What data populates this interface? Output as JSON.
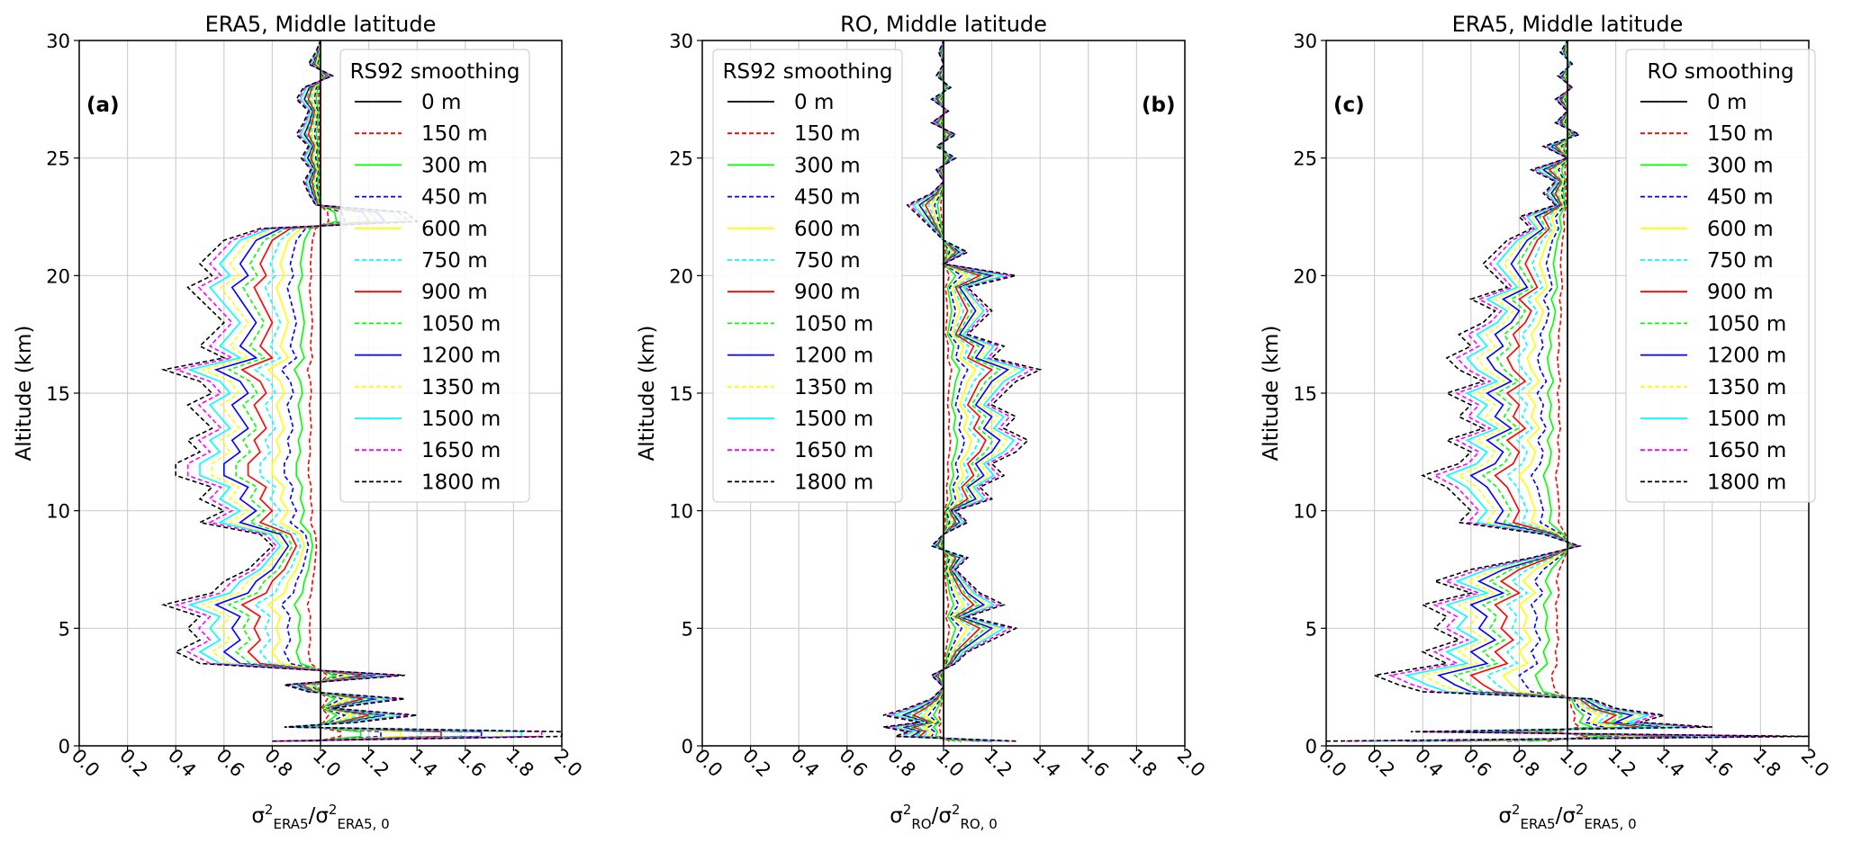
{
  "legend_levels": [
    "0 m",
    "150 m",
    "300 m",
    "450 m",
    "600 m",
    "750 m",
    "900 m",
    "1050 m",
    "1200 m",
    "1350 m",
    "1500 m",
    "1650 m",
    "1800 m"
  ],
  "legend_styles": [
    {
      "color": "#000000",
      "dash": "solid"
    },
    {
      "color": "#ff0000",
      "dash": "dashed"
    },
    {
      "color": "#00ff00",
      "dash": "solid"
    },
    {
      "color": "#0000ff",
      "dash": "dashed"
    },
    {
      "color": "#ffff00",
      "dash": "solid"
    },
    {
      "color": "#00ffff",
      "dash": "dashed"
    },
    {
      "color": "#ff0000",
      "dash": "solid"
    },
    {
      "color": "#00ff00",
      "dash": "dashed"
    },
    {
      "color": "#0000ff",
      "dash": "solid"
    },
    {
      "color": "#ffff00",
      "dash": "dashed"
    },
    {
      "color": "#00ffff",
      "dash": "solid"
    },
    {
      "color": "#ff00ff",
      "dash": "dashed"
    },
    {
      "color": "#000000",
      "dash": "dashed"
    }
  ],
  "x_ticks": [
    "0.0",
    "0.2",
    "0.4",
    "0.6",
    "0.8",
    "1.0",
    "1.2",
    "1.4",
    "1.6",
    "1.8",
    "2.0"
  ],
  "y_ticks": [
    "0",
    "5",
    "10",
    "15",
    "20",
    "25",
    "30"
  ],
  "chart_data": [
    {
      "type": "line",
      "title": "ERA5, Middle latitude",
      "panel_label": "(a)",
      "ylabel": "Altitude (km)",
      "xlabel_main": "σ",
      "xlabel_parts": [
        "σ",
        "2",
        "ERA5",
        "/σ",
        "2",
        "ERA5, 0"
      ],
      "xlim": [
        0,
        2
      ],
      "ylim": [
        0,
        30
      ],
      "legend_title": "RS92 smoothing",
      "legend_position": "top-right",
      "grid": true,
      "reference_x": 1.0,
      "profile_1800m": {
        "altitude_km": [
          0.2,
          0.4,
          0.6,
          0.8,
          1.0,
          1.3,
          1.6,
          2.0,
          2.3,
          2.6,
          3.0,
          3.5,
          4.0,
          4.5,
          5.0,
          5.5,
          6.0,
          6.5,
          7.0,
          7.5,
          8.0,
          8.5,
          9.0,
          9.5,
          10.0,
          10.5,
          11.0,
          11.5,
          12.0,
          12.5,
          13.0,
          13.5,
          14.0,
          14.5,
          15.0,
          15.5,
          16.0,
          16.5,
          17.0,
          17.5,
          18.0,
          18.5,
          19.0,
          19.5,
          20.0,
          20.5,
          21.0,
          21.5,
          22.0,
          22.3,
          22.7,
          23.0,
          23.5,
          24.0,
          24.5,
          25.0,
          25.5,
          26.0,
          26.5,
          27.0,
          27.5,
          28.0,
          28.5,
          29.0,
          29.5,
          30.0
        ],
        "ratio": [
          0.8,
          2.0,
          2.0,
          0.85,
          1.15,
          1.4,
          1.05,
          1.35,
          0.95,
          0.85,
          1.35,
          0.5,
          0.4,
          0.5,
          0.45,
          0.5,
          0.35,
          0.55,
          0.6,
          0.7,
          0.75,
          0.8,
          0.75,
          0.5,
          0.6,
          0.5,
          0.55,
          0.4,
          0.4,
          0.5,
          0.45,
          0.55,
          0.5,
          0.45,
          0.55,
          0.5,
          0.35,
          0.6,
          0.5,
          0.55,
          0.6,
          0.55,
          0.5,
          0.45,
          0.55,
          0.5,
          0.55,
          0.6,
          0.75,
          1.4,
          1.35,
          0.98,
          0.95,
          0.93,
          0.96,
          0.92,
          0.95,
          0.9,
          0.93,
          0.95,
          0.9,
          0.93,
          1.05,
          0.95,
          0.98,
          1.0
        ]
      }
    },
    {
      "type": "line",
      "title": "RO, Middle latitude",
      "panel_label": "(b)",
      "ylabel": "Altitude (km)",
      "xlabel_parts": [
        "σ",
        "2",
        "RO",
        "/σ",
        "2",
        "RO, 0"
      ],
      "xlim": [
        0,
        2
      ],
      "ylim": [
        0,
        30
      ],
      "legend_title": "RS92 smoothing",
      "legend_position": "top-left",
      "grid": true,
      "reference_x": 1.0,
      "profile_1800m": {
        "altitude_km": [
          0.2,
          0.4,
          0.6,
          0.8,
          1.0,
          1.3,
          1.6,
          2.0,
          2.5,
          3.0,
          3.5,
          4.0,
          4.5,
          5.0,
          5.5,
          6.0,
          6.5,
          7.0,
          7.5,
          8.0,
          8.5,
          9.0,
          9.5,
          10.0,
          10.5,
          11.0,
          11.5,
          12.0,
          12.5,
          13.0,
          13.5,
          14.0,
          14.5,
          15.0,
          15.5,
          16.0,
          16.5,
          17.0,
          17.5,
          18.0,
          18.5,
          19.0,
          19.5,
          20.0,
          20.5,
          21.0,
          21.5,
          22.0,
          22.5,
          23.0,
          23.5,
          24.0,
          24.5,
          25.0,
          25.5,
          26.0,
          26.5,
          27.0,
          27.5,
          28.0,
          28.5,
          29.0,
          29.5,
          30.0
        ],
        "ratio": [
          1.3,
          0.8,
          0.85,
          0.75,
          0.9,
          0.75,
          0.85,
          0.95,
          1.0,
          0.95,
          1.05,
          1.1,
          1.2,
          1.3,
          1.1,
          1.25,
          1.15,
          1.1,
          1.05,
          1.1,
          0.95,
          1.0,
          1.1,
          1.05,
          1.2,
          1.15,
          1.25,
          1.2,
          1.3,
          1.35,
          1.25,
          1.3,
          1.2,
          1.25,
          1.3,
          1.4,
          1.2,
          1.25,
          1.1,
          1.15,
          1.2,
          1.15,
          1.1,
          1.3,
          1.0,
          1.1,
          1.0,
          0.95,
          0.9,
          0.85,
          0.95,
          1.0,
          0.97,
          1.05,
          0.97,
          1.05,
          0.95,
          1.02,
          0.95,
          1.03,
          0.97,
          1.0,
          0.98,
          1.0
        ]
      }
    },
    {
      "type": "line",
      "title": "ERA5, Middle latitude",
      "panel_label": "(c)",
      "ylabel": "Altitude (km)",
      "xlabel_parts": [
        "σ",
        "2",
        "ERA5",
        "/σ",
        "2",
        "ERA5, 0"
      ],
      "xlim": [
        0,
        2
      ],
      "ylim": [
        0,
        30
      ],
      "legend_title": "RO smoothing",
      "legend_position": "top-right",
      "grid": true,
      "reference_x": 1.0,
      "profile_1800m": {
        "altitude_km": [
          0.2,
          0.4,
          0.6,
          0.8,
          1.0,
          1.3,
          1.6,
          2.0,
          2.3,
          2.6,
          3.0,
          3.5,
          4.0,
          4.5,
          5.0,
          5.5,
          6.0,
          6.5,
          7.0,
          7.5,
          8.0,
          8.5,
          9.0,
          9.5,
          10.0,
          10.5,
          11.0,
          11.5,
          12.0,
          12.5,
          13.0,
          13.5,
          14.0,
          14.5,
          15.0,
          15.5,
          16.0,
          16.5,
          17.0,
          17.5,
          18.0,
          18.5,
          19.0,
          19.5,
          20.0,
          20.5,
          21.0,
          21.5,
          22.0,
          22.5,
          23.0,
          23.5,
          24.0,
          24.5,
          25.0,
          25.5,
          26.0,
          26.5,
          27.0,
          27.5,
          28.0,
          28.5,
          29.0,
          29.5,
          30.0
        ],
        "ratio": [
          0.0,
          2.0,
          0.35,
          1.6,
          1.3,
          1.4,
          1.2,
          1.1,
          0.4,
          0.3,
          0.2,
          0.5,
          0.4,
          0.55,
          0.45,
          0.5,
          0.4,
          0.6,
          0.45,
          0.6,
          0.85,
          1.05,
          0.9,
          0.55,
          0.6,
          0.55,
          0.5,
          0.4,
          0.55,
          0.6,
          0.5,
          0.65,
          0.55,
          0.6,
          0.5,
          0.65,
          0.55,
          0.5,
          0.6,
          0.55,
          0.65,
          0.7,
          0.6,
          0.75,
          0.7,
          0.65,
          0.7,
          0.75,
          0.85,
          0.8,
          0.95,
          0.9,
          0.95,
          0.85,
          1.0,
          0.9,
          1.05,
          0.95,
          1.0,
          0.95,
          1.02,
          0.96,
          1.02,
          0.97,
          1.0
        ]
      }
    }
  ]
}
